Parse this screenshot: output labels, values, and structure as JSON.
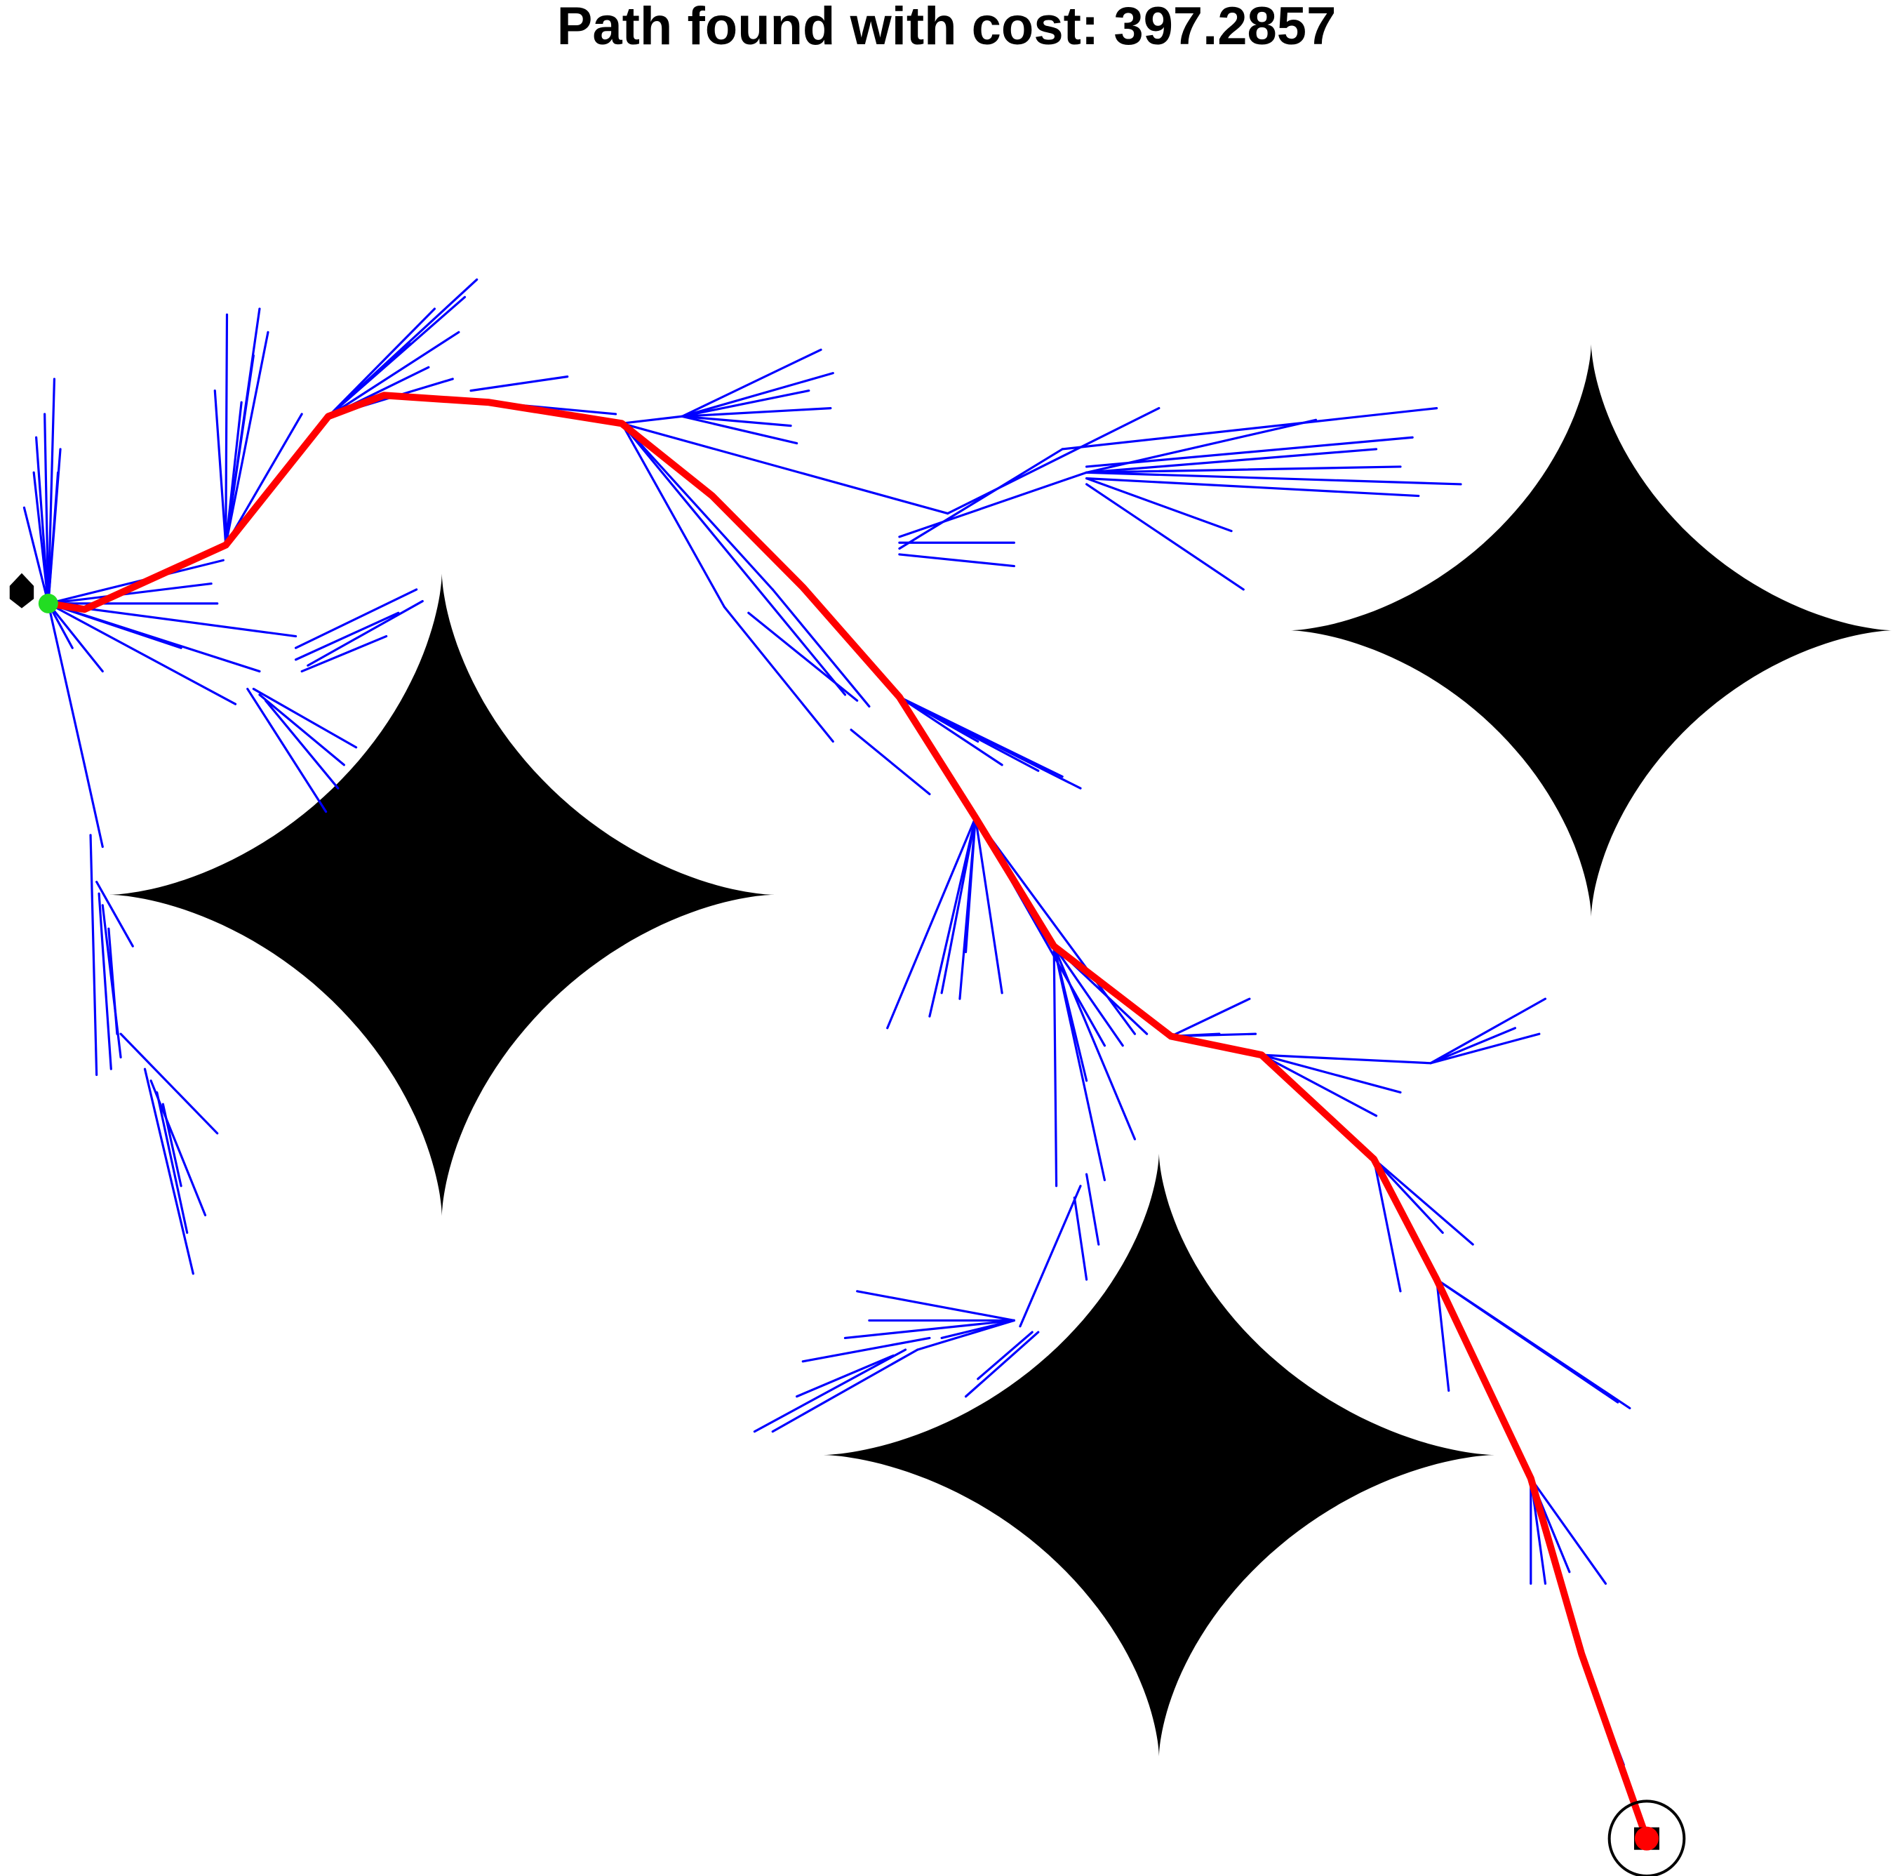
{
  "title": "Path found with cost: 397.2857",
  "colors": {
    "background": "#ffffff",
    "obstacle": "#000000",
    "tree": "#0000ff",
    "path": "#ff0000",
    "start": "#22dd22",
    "goal": "#ff0000",
    "goal_ring": "#000000"
  },
  "chart_data": {
    "type": "scatter",
    "x_range": [
      0,
      1568
    ],
    "y_range": [
      0,
      1550
    ],
    "y_direction": "down",
    "obstacles": [
      {
        "shape": "four-point-star",
        "center": [
          366,
          711
        ],
        "reach": [
          275,
          275
        ]
      },
      {
        "shape": "four-point-star",
        "center": [
          1318,
          485
        ],
        "reach": [
          250,
          245
        ]
      },
      {
        "shape": "four-point-star",
        "center": [
          960,
          1190
        ],
        "reach": [
          278,
          258
        ]
      }
    ],
    "start": [
      40,
      462
    ],
    "goal": [
      1364,
      1518
    ],
    "goal_radius": 31,
    "path": [
      [
        40,
        462
      ],
      [
        70,
        467
      ],
      [
        187,
        412
      ],
      [
        272,
        302
      ],
      [
        318,
        284
      ],
      [
        405,
        290
      ],
      [
        515,
        308
      ],
      [
        590,
        370
      ],
      [
        665,
        448
      ],
      [
        745,
        542
      ],
      [
        808,
        645
      ],
      [
        873,
        755
      ],
      [
        970,
        832
      ],
      [
        1045,
        848
      ],
      [
        1138,
        937
      ],
      [
        1190,
        1040
      ],
      [
        1268,
        1210
      ],
      [
        1310,
        1360
      ],
      [
        1364,
        1518
      ]
    ],
    "tree_edges": [
      [
        [
          40,
          462
        ],
        [
          45,
          270
        ]
      ],
      [
        [
          40,
          462
        ],
        [
          37,
          300
        ]
      ],
      [
        [
          40,
          462
        ],
        [
          30,
          320
        ]
      ],
      [
        [
          40,
          462
        ],
        [
          20,
          380
        ]
      ],
      [
        [
          40,
          462
        ],
        [
          50,
          330
        ]
      ],
      [
        [
          40,
          462
        ],
        [
          28,
          350
        ]
      ],
      [
        [
          40,
          462
        ],
        [
          48,
          350
        ]
      ],
      [
        [
          40,
          462
        ],
        [
          180,
          462
        ]
      ],
      [
        [
          40,
          462
        ],
        [
          245,
          490
        ]
      ],
      [
        [
          40,
          462
        ],
        [
          195,
          548
        ]
      ],
      [
        [
          40,
          462
        ],
        [
          175,
          445
        ]
      ],
      [
        [
          40,
          462
        ],
        [
          85,
          520
        ]
      ],
      [
        [
          40,
          462
        ],
        [
          70,
          600
        ]
      ],
      [
        [
          40,
          462
        ],
        [
          60,
          500
        ]
      ],
      [
        [
          40,
          462
        ],
        [
          185,
          425
        ]
      ],
      [
        [
          40,
          462
        ],
        [
          150,
          500
        ]
      ],
      [
        [
          40,
          462
        ],
        [
          215,
          520
        ]
      ],
      [
        [
          245,
          500
        ],
        [
          345,
          450
        ]
      ],
      [
        [
          245,
          510
        ],
        [
          330,
          470
        ]
      ],
      [
        [
          250,
          520
        ],
        [
          320,
          490
        ]
      ],
      [
        [
          255,
          515
        ],
        [
          350,
          460
        ]
      ],
      [
        [
          205,
          535
        ],
        [
          270,
          640
        ]
      ],
      [
        [
          210,
          535
        ],
        [
          295,
          585
        ]
      ],
      [
        [
          215,
          540
        ],
        [
          285,
          600
        ]
      ],
      [
        [
          220,
          545
        ],
        [
          280,
          620
        ]
      ],
      [
        [
          70,
          600
        ],
        [
          85,
          670
        ]
      ],
      [
        [
          75,
          660
        ],
        [
          80,
          865
        ]
      ],
      [
        [
          80,
          700
        ],
        [
          110,
          755
        ]
      ],
      [
        [
          82,
          710
        ],
        [
          92,
          860
        ]
      ],
      [
        [
          85,
          720
        ],
        [
          100,
          850
        ]
      ],
      [
        [
          90,
          740
        ],
        [
          97,
          830
        ]
      ],
      [
        [
          100,
          830
        ],
        [
          180,
          915
        ]
      ],
      [
        [
          120,
          860
        ],
        [
          160,
          1035
        ]
      ],
      [
        [
          125,
          870
        ],
        [
          170,
          985
        ]
      ],
      [
        [
          130,
          880
        ],
        [
          155,
          1000
        ]
      ],
      [
        [
          135,
          890
        ],
        [
          150,
          960
        ]
      ],
      [
        [
          187,
          412
        ],
        [
          188,
          215
        ]
      ],
      [
        [
          187,
          412
        ],
        [
          215,
          210
        ]
      ],
      [
        [
          187,
          412
        ],
        [
          178,
          280
        ]
      ],
      [
        [
          187,
          412
        ],
        [
          210,
          250
        ]
      ],
      [
        [
          187,
          412
        ],
        [
          250,
          300
        ]
      ],
      [
        [
          187,
          412
        ],
        [
          222,
          230
        ]
      ],
      [
        [
          187,
          412
        ],
        [
          200,
          290
        ]
      ],
      [
        [
          272,
          302
        ],
        [
          395,
          185
        ]
      ],
      [
        [
          272,
          302
        ],
        [
          380,
          230
        ]
      ],
      [
        [
          272,
          302
        ],
        [
          375,
          270
        ]
      ],
      [
        [
          272,
          302
        ],
        [
          360,
          210
        ]
      ],
      [
        [
          272,
          302
        ],
        [
          355,
          260
        ]
      ],
      [
        [
          272,
          302
        ],
        [
          385,
          200
        ]
      ],
      [
        [
          272,
          302
        ],
        [
          340,
          240
        ]
      ],
      [
        [
          390,
          280
        ],
        [
          470,
          268
        ]
      ],
      [
        [
          405,
          290
        ],
        [
          510,
          300
        ]
      ],
      [
        [
          515,
          308
        ],
        [
          565,
          302
        ]
      ],
      [
        [
          565,
          302
        ],
        [
          680,
          245
        ]
      ],
      [
        [
          565,
          302
        ],
        [
          690,
          265
        ]
      ],
      [
        [
          565,
          302
        ],
        [
          688,
          295
        ]
      ],
      [
        [
          565,
          302
        ],
        [
          660,
          325
        ]
      ],
      [
        [
          565,
          302
        ],
        [
          670,
          280
        ]
      ],
      [
        [
          565,
          302
        ],
        [
          655,
          310
        ]
      ],
      [
        [
          515,
          308
        ],
        [
          785,
          385
        ]
      ],
      [
        [
          785,
          385
        ],
        [
          960,
          295
        ]
      ],
      [
        [
          515,
          308
        ],
        [
          600,
          465
        ]
      ],
      [
        [
          515,
          308
        ],
        [
          640,
          450
        ]
      ],
      [
        [
          515,
          308
        ],
        [
          700,
          540
        ]
      ],
      [
        [
          745,
          410
        ],
        [
          840,
          410
        ]
      ],
      [
        [
          745,
          420
        ],
        [
          840,
          430
        ]
      ],
      [
        [
          745,
          415
        ],
        [
          880,
          330
        ]
      ],
      [
        [
          745,
          405
        ],
        [
          900,
          350
        ]
      ],
      [
        [
          880,
          330
        ],
        [
          1190,
          295
        ]
      ],
      [
        [
          900,
          350
        ],
        [
          1210,
          360
        ]
      ],
      [
        [
          900,
          355
        ],
        [
          1175,
          370
        ]
      ],
      [
        [
          900,
          345
        ],
        [
          1170,
          320
        ]
      ],
      [
        [
          900,
          350
        ],
        [
          1160,
          345
        ]
      ],
      [
        [
          900,
          350
        ],
        [
          1090,
          305
        ]
      ],
      [
        [
          900,
          360
        ],
        [
          1030,
          450
        ]
      ],
      [
        [
          900,
          355
        ],
        [
          1020,
          400
        ]
      ],
      [
        [
          900,
          350
        ],
        [
          1140,
          330
        ]
      ],
      [
        [
          600,
          465
        ],
        [
          690,
          580
        ]
      ],
      [
        [
          620,
          470
        ],
        [
          710,
          545
        ]
      ],
      [
        [
          640,
          450
        ],
        [
          720,
          550
        ]
      ],
      [
        [
          705,
          570
        ],
        [
          770,
          625
        ]
      ],
      [
        [
          745,
          542
        ],
        [
          880,
          610
        ]
      ],
      [
        [
          745,
          542
        ],
        [
          895,
          620
        ]
      ],
      [
        [
          745,
          542
        ],
        [
          860,
          605
        ]
      ],
      [
        [
          745,
          542
        ],
        [
          830,
          600
        ]
      ],
      [
        [
          745,
          542
        ],
        [
          810,
          580
        ]
      ],
      [
        [
          808,
          645
        ],
        [
          795,
          800
        ]
      ],
      [
        [
          808,
          645
        ],
        [
          830,
          795
        ]
      ],
      [
        [
          808,
          645
        ],
        [
          735,
          825
        ]
      ],
      [
        [
          808,
          645
        ],
        [
          780,
          795
        ]
      ],
      [
        [
          808,
          645
        ],
        [
          770,
          815
        ]
      ],
      [
        [
          808,
          645
        ],
        [
          800,
          760
        ]
      ],
      [
        [
          808,
          645
        ],
        [
          940,
          830
        ]
      ],
      [
        [
          808,
          645
        ],
        [
          915,
          840
        ]
      ],
      [
        [
          873,
          755
        ],
        [
          875,
          960
        ]
      ],
      [
        [
          873,
          755
        ],
        [
          915,
          955
        ]
      ],
      [
        [
          873,
          755
        ],
        [
          940,
          920
        ]
      ],
      [
        [
          873,
          755
        ],
        [
          900,
          870
        ]
      ],
      [
        [
          873,
          755
        ],
        [
          950,
          830
        ]
      ],
      [
        [
          873,
          755
        ],
        [
          930,
          840
        ]
      ],
      [
        [
          970,
          832
        ],
        [
          1035,
          800
        ]
      ],
      [
        [
          970,
          832
        ],
        [
          1040,
          830
        ]
      ],
      [
        [
          970,
          832
        ],
        [
          1010,
          830
        ]
      ],
      [
        [
          1045,
          848
        ],
        [
          1185,
          855
        ]
      ],
      [
        [
          1185,
          855
        ],
        [
          1280,
          800
        ]
      ],
      [
        [
          1185,
          855
        ],
        [
          1275,
          830
        ]
      ],
      [
        [
          1185,
          855
        ],
        [
          1255,
          825
        ]
      ],
      [
        [
          1045,
          848
        ],
        [
          1160,
          880
        ]
      ],
      [
        [
          1045,
          848
        ],
        [
          1140,
          900
        ]
      ],
      [
        [
          1138,
          937
        ],
        [
          1160,
          1050
        ]
      ],
      [
        [
          1138,
          937
        ],
        [
          1195,
          1000
        ]
      ],
      [
        [
          1138,
          937
        ],
        [
          1220,
          1010
        ]
      ],
      [
        [
          1190,
          1040
        ],
        [
          1200,
          1135
        ]
      ],
      [
        [
          1190,
          1040
        ],
        [
          1350,
          1150
        ]
      ],
      [
        [
          1190,
          1040
        ],
        [
          1340,
          1145
        ]
      ],
      [
        [
          1268,
          1210
        ],
        [
          1268,
          1300
        ]
      ],
      [
        [
          1268,
          1210
        ],
        [
          1280,
          1300
        ]
      ],
      [
        [
          1268,
          1210
        ],
        [
          1330,
          1300
        ]
      ],
      [
        [
          1268,
          1210
        ],
        [
          1300,
          1290
        ]
      ],
      [
        [
          1310,
          1360
        ],
        [
          1345,
          1455
        ]
      ],
      [
        [
          895,
          960
        ],
        [
          845,
          1080
        ]
      ],
      [
        [
          900,
          950
        ],
        [
          910,
          1010
        ]
      ],
      [
        [
          890,
          970
        ],
        [
          900,
          1040
        ]
      ],
      [
        [
          840,
          1075
        ],
        [
          710,
          1050
        ]
      ],
      [
        [
          840,
          1075
        ],
        [
          720,
          1075
        ]
      ],
      [
        [
          840,
          1075
        ],
        [
          700,
          1090
        ]
      ],
      [
        [
          840,
          1075
        ],
        [
          780,
          1090
        ]
      ],
      [
        [
          840,
          1075
        ],
        [
          760,
          1100
        ]
      ],
      [
        [
          770,
          1090
        ],
        [
          665,
          1110
        ]
      ],
      [
        [
          760,
          1100
        ],
        [
          640,
          1170
        ]
      ],
      [
        [
          750,
          1100
        ],
        [
          625,
          1170
        ]
      ],
      [
        [
          740,
          1105
        ],
        [
          660,
          1140
        ]
      ],
      [
        [
          860,
          1085
        ],
        [
          800,
          1140
        ]
      ],
      [
        [
          855,
          1085
        ],
        [
          810,
          1125
        ]
      ]
    ]
  }
}
